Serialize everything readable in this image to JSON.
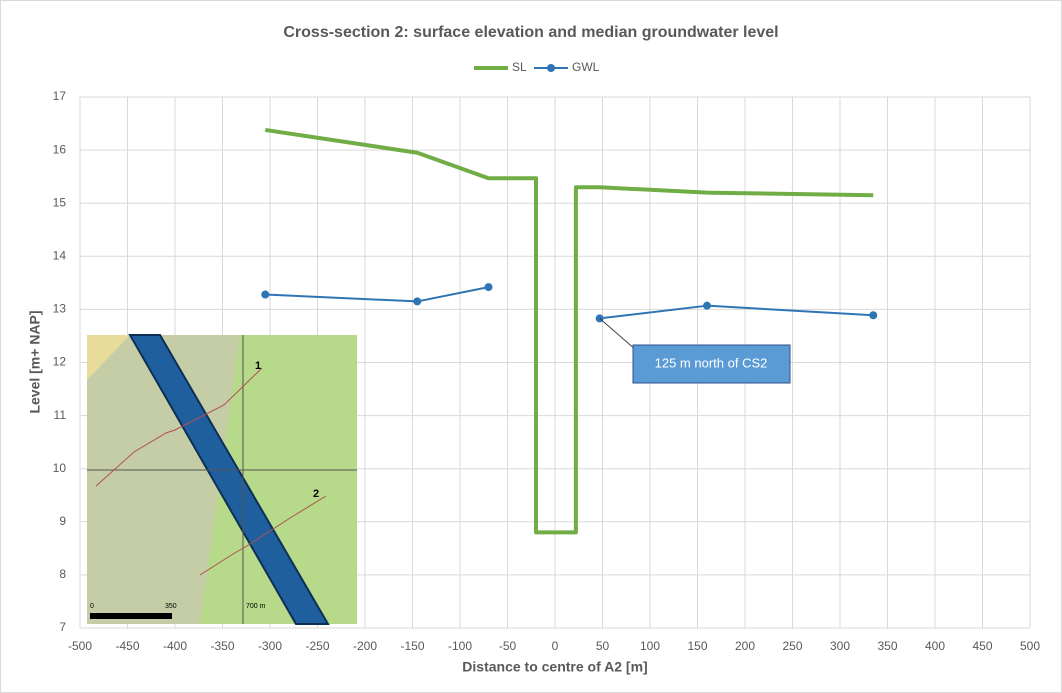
{
  "chart_data": {
    "type": "line",
    "title": "Cross-section 2: surface elevation and median groundwater level",
    "x_label": "Distance to centre of A2 [m]",
    "y_label": "Level [m+ NAP]",
    "series": [
      {
        "name": "SL",
        "color": "#70ad47",
        "markers": false,
        "x": [
          -305,
          -145,
          -70,
          -20,
          -20,
          22,
          22,
          47,
          160,
          335
        ],
        "values": [
          16.38,
          15.95,
          15.47,
          15.47,
          8.8,
          8.8,
          15.3,
          15.3,
          15.2,
          15.15
        ]
      },
      {
        "name": "GWL",
        "color": "#2e75b6",
        "markers": true,
        "x": [
          -305,
          -145,
          -70,
          null,
          47,
          160,
          335
        ],
        "values": [
          13.28,
          13.15,
          13.42,
          null,
          12.83,
          13.07,
          12.89
        ]
      }
    ],
    "annotation": {
      "text": "125 m north of CS2",
      "x": 47,
      "y": 12.83
    },
    "inset_labels": [
      "0",
      "350",
      "700 m",
      "1",
      "2"
    ],
    "xlim": [
      -500,
      500
    ],
    "xticks": [
      -500,
      -450,
      -400,
      -350,
      -300,
      -250,
      -200,
      -150,
      -100,
      -50,
      0,
      50,
      100,
      150,
      200,
      250,
      300,
      350,
      400,
      450,
      500
    ],
    "ylim": [
      7,
      17
    ],
    "yticks": [
      7,
      8,
      9,
      10,
      11,
      12,
      13,
      14,
      15,
      16,
      17
    ],
    "grid": true,
    "legend": "top"
  }
}
